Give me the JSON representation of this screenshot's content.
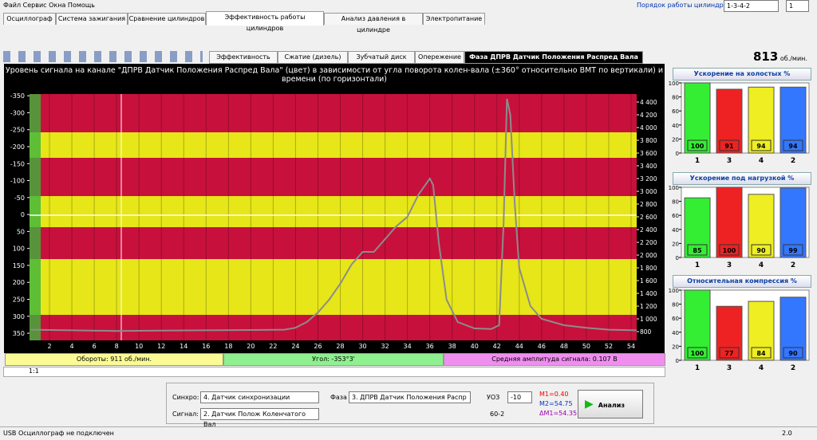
{
  "menu": [
    "Файл",
    "Сервис",
    "Окна",
    "Помощь"
  ],
  "firing_order": {
    "label": "Порядок работы цилиндров",
    "value": "1-3-4-2",
    "spin": "1"
  },
  "tabs": [
    "Осциллограф",
    "Система зажигания",
    "Сравнение цилиндров",
    "Эффективность работы цилиндров",
    "Анализ давления в цилиндре",
    "Электропитание"
  ],
  "subtabs": [
    "Эффективность",
    "Сжатие (дизель)",
    "Зубчатый диск",
    "Опережение",
    "Фаза ДПРВ Датчик Положения Распред Вала"
  ],
  "rpm": {
    "value": "813",
    "unit": "об./мин."
  },
  "main_chart": {
    "type": "line",
    "title": "Уровень сигнала на канале \"ДПРВ Датчик Положения Распред Вала\" (цвет) в зависимости от угла поворота колен-вала (±360° относительно ВМТ по вертикали) и времени (по горизонтали)",
    "xlim": [
      0,
      54.5
    ],
    "xticks": [
      2,
      4,
      6,
      8,
      10,
      12,
      14,
      16,
      18,
      20,
      22,
      24,
      26,
      28,
      30,
      32,
      34,
      36,
      38,
      40,
      42,
      44,
      46,
      48,
      50,
      52,
      54
    ],
    "ylim": [
      371,
      -355
    ],
    "yticks": [
      -350,
      -300,
      -250,
      -200,
      -150,
      -100,
      -50,
      0,
      50,
      100,
      150,
      200,
      250,
      300,
      350
    ],
    "y2lim": [
      663,
      4525
    ],
    "y2ticks": [
      800,
      {
        "value": 1000,
        "label": "1 000"
      },
      {
        "value": 1200,
        "label": "1 200"
      },
      {
        "value": 1400,
        "label": "1 400"
      },
      {
        "value": 1600,
        "label": "1 600"
      },
      {
        "value": 1800,
        "label": "1 800"
      },
      {
        "value": 2000,
        "label": "2 000"
      },
      {
        "value": 2200,
        "label": "2 200"
      },
      {
        "value": 2400,
        "label": "2 400"
      },
      {
        "value": 2600,
        "label": "2 600"
      },
      {
        "value": 2800,
        "label": "2 800"
      },
      {
        "value": 3000,
        "label": "3 000"
      },
      {
        "value": 3200,
        "label": "3 200"
      },
      {
        "value": 3400,
        "label": "3 400"
      },
      {
        "value": 3600,
        "label": "3 600"
      },
      {
        "value": 3800,
        "label": "3 800"
      },
      {
        "value": 4000,
        "label": "4 000"
      },
      {
        "value": 4200,
        "label": "4 200"
      },
      {
        "value": 4400,
        "label": "4 400"
      }
    ],
    "trace": {
      "color": "#8c8c8c",
      "axis": "y2",
      "x": [
        0.3,
        4,
        8,
        12,
        16,
        20,
        23,
        24,
        25,
        26,
        27,
        28,
        29,
        30,
        31,
        32,
        33,
        34,
        35,
        36,
        36.3,
        36.8,
        37.5,
        38.5,
        40,
        41.5,
        42.2,
        42.6,
        42.9,
        43.2,
        43.6,
        44,
        44.5,
        45,
        46,
        48,
        50,
        52,
        54.5
      ],
      "values": [
        830,
        820,
        810,
        815,
        820,
        825,
        830,
        860,
        950,
        1100,
        1300,
        1550,
        1850,
        2050,
        2050,
        2250,
        2450,
        2600,
        2950,
        3200,
        3100,
        2200,
        1300,
        950,
        850,
        840,
        900,
        2500,
        4450,
        4200,
        2800,
        1800,
        1500,
        1200,
        1000,
        900,
        860,
        830,
        820
      ]
    }
  },
  "status": {
    "rpm": "Обороты: 911 об./мин.",
    "angle": "Угол: -353°3'",
    "amplitude": "Средняя амплитуда сигнала: 0.107 В"
  },
  "zoom": "1:1",
  "side_charts": [
    {
      "type": "bar",
      "title": "Ускорение на холостых %",
      "categories": [
        "1",
        "3",
        "4",
        "2"
      ],
      "values": [
        100,
        91,
        94,
        94
      ],
      "colors": [
        "#33ee33",
        "#ee2222",
        "#eeee22",
        "#3377ff"
      ],
      "ylim": [
        0,
        100
      ],
      "yticks": [
        0,
        20,
        40,
        60,
        80,
        100
      ]
    },
    {
      "type": "bar",
      "title": "Ускорение под нагрузкой %",
      "categories": [
        "1",
        "3",
        "4",
        "2"
      ],
      "values": [
        85,
        100,
        90,
        99
      ],
      "colors": [
        "#33ee33",
        "#ee2222",
        "#eeee22",
        "#3377ff"
      ],
      "ylim": [
        0,
        100
      ],
      "yticks": [
        0,
        20,
        40,
        60,
        80,
        100
      ]
    },
    {
      "type": "bar",
      "title": "Относительная компрессия %",
      "categories": [
        "1",
        "3",
        "4",
        "2"
      ],
      "values": [
        100,
        77,
        84,
        90
      ],
      "colors": [
        "#33ee33",
        "#ee2222",
        "#eeee22",
        "#3377ff"
      ],
      "ylim": [
        0,
        100
      ],
      "yticks": [
        0,
        20,
        40,
        60,
        80,
        100
      ]
    }
  ],
  "controls": {
    "sync_label": "Синхро:",
    "sync": "4. Датчик синхронизации",
    "signal_label": "Сигнал:",
    "signal": "2. Датчик Полож Коленчатого Вал",
    "phase_label": "Фаза",
    "phase": "3. ДПРВ Датчик Положения Распр",
    "uoz_label": "УОЗ",
    "uoz": "-10",
    "ratio": "60-2",
    "m1": "M1=0.40",
    "m2": "M2=54.75",
    "dm": "ΔM1=54.35",
    "analyze": "Анализ"
  },
  "statusbar": [
    "USB Осциллограф не подключен",
    "2.0"
  ]
}
